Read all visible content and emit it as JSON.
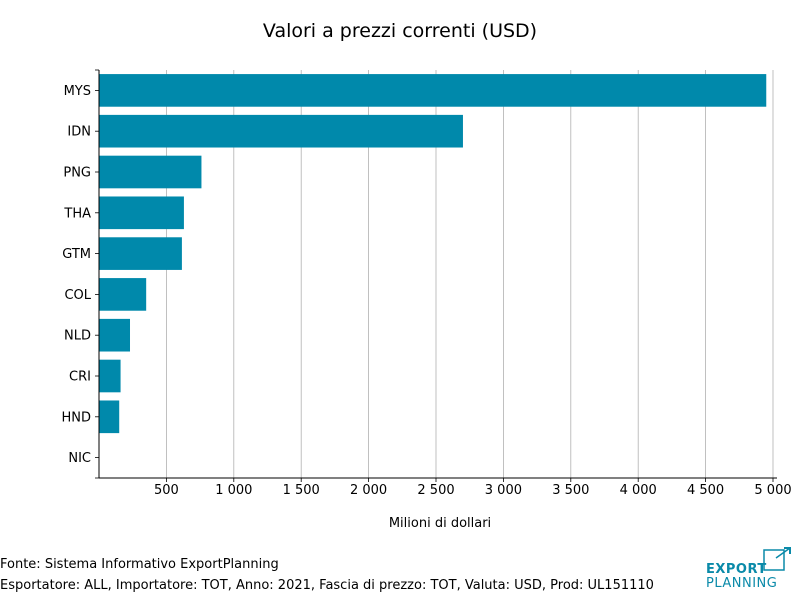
{
  "chart_data": {
    "type": "bar",
    "orientation": "horizontal",
    "title": "Valori a prezzi correnti (USD)",
    "xlabel": "Milioni di dollari",
    "ylabel": "",
    "categories": [
      "MYS",
      "IDN",
      "PNG",
      "THA",
      "GTM",
      "COL",
      "NLD",
      "CRI",
      "HND",
      "NIC"
    ],
    "values": [
      4950,
      2700,
      760,
      630,
      615,
      350,
      230,
      160,
      150,
      0
    ],
    "xlim": [
      0,
      5000
    ],
    "xticks": [
      500,
      1000,
      1500,
      2000,
      2500,
      3000,
      3500,
      4000,
      4500,
      5000
    ],
    "xtick_labels": [
      "500",
      "1 000",
      "1 500",
      "2 000",
      "2 500",
      "3 000",
      "3 500",
      "4 000",
      "4 500",
      "5 000"
    ],
    "grid": "vertical",
    "bar_color": "#0089ab"
  },
  "footer": {
    "source": "Fonte: Sistema Informativo ExportPlanning",
    "details": "Esportatore: ALL, Importatore: TOT, Anno: 2021, Fascia di prezzo: TOT, Valuta: USD, Prod: UL151110"
  },
  "logo": {
    "line1": "EXPORT",
    "line2": "PLANNING",
    "color": "#0a8aa9"
  }
}
